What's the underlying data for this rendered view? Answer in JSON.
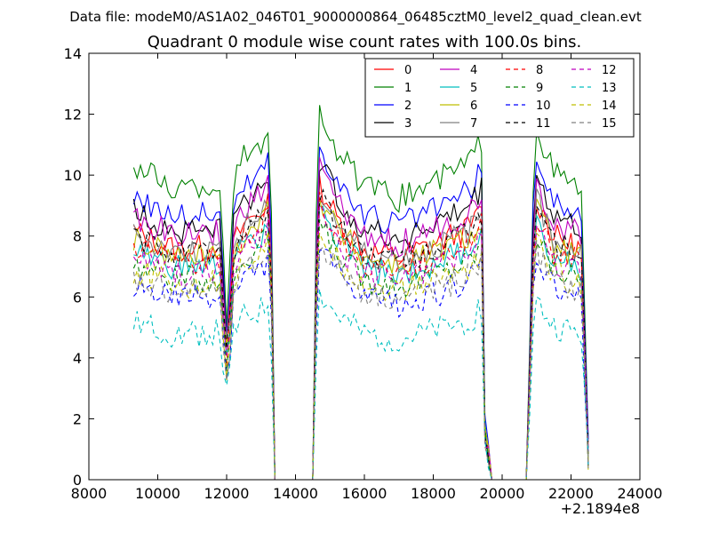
{
  "chart_data": {
    "type": "line",
    "suptitle": "Data file: modeM0/AS1A02_046T01_9000000864_06485cztM0_level2_quad_clean.evt",
    "title": "Quadrant 0 module wise count rates with 100.0s bins.",
    "xlabel": "",
    "ylabel": "",
    "x_offset_label": "+2.1894e8",
    "xlim": [
      8000,
      24000
    ],
    "ylim": [
      0,
      14
    ],
    "xticks": [
      8000,
      10000,
      12000,
      14000,
      16000,
      18000,
      20000,
      22000,
      24000
    ],
    "yticks": [
      0,
      2,
      4,
      6,
      8,
      10,
      12,
      14
    ],
    "x_tick_labels": [
      "8000",
      "10000",
      "12000",
      "14000",
      "16000",
      "18000",
      "20000",
      "22000",
      "24000"
    ],
    "y_tick_labels": [
      "0",
      "2",
      "4",
      "6",
      "8",
      "10",
      "12",
      "14"
    ],
    "legend_position": "top-right",
    "legend_columns": 4,
    "profile_breakpoints": [
      {
        "x": 9300,
        "f": 0.97
      },
      {
        "x": 10500,
        "f": 0.9
      },
      {
        "x": 11800,
        "f": 0.91
      },
      {
        "x": 11950,
        "f": 0.6
      },
      {
        "x": 12050,
        "f": 0.42
      },
      {
        "x": 12150,
        "f": 0.9
      },
      {
        "x": 12500,
        "f": 1.0
      },
      {
        "x": 13000,
        "f": 1.05
      },
      {
        "x": 13200,
        "f": 1.1
      },
      {
        "x": 13300,
        "f": 0.8
      },
      {
        "x": 13400,
        "f": 0.0
      },
      {
        "x": 14500,
        "f": 0.0
      },
      {
        "x": 14600,
        "f": 0.8
      },
      {
        "x": 14700,
        "f": 1.15
      },
      {
        "x": 15200,
        "f": 1.02
      },
      {
        "x": 16000,
        "f": 0.9
      },
      {
        "x": 17000,
        "f": 0.87
      },
      {
        "x": 18000,
        "f": 0.92
      },
      {
        "x": 19000,
        "f": 0.98
      },
      {
        "x": 19400,
        "f": 1.05
      },
      {
        "x": 19500,
        "f": 0.2
      },
      {
        "x": 19700,
        "f": 0.0
      },
      {
        "x": 20700,
        "f": 0.0
      },
      {
        "x": 20900,
        "f": 0.9
      },
      {
        "x": 21000,
        "f": 1.1
      },
      {
        "x": 21500,
        "f": 0.95
      },
      {
        "x": 22300,
        "f": 0.9
      },
      {
        "x": 22500,
        "f": 0.1
      }
    ],
    "series": [
      {
        "name": "0",
        "color": "#ff0000",
        "dash": "solid",
        "base": 8.4
      },
      {
        "name": "1",
        "color": "#008000",
        "dash": "solid",
        "base": 10.6
      },
      {
        "name": "2",
        "color": "#0000ff",
        "dash": "solid",
        "base": 9.6
      },
      {
        "name": "3",
        "color": "#000000",
        "dash": "solid",
        "base": 9.1
      },
      {
        "name": "4",
        "color": "#bf00bf",
        "dash": "solid",
        "base": 8.9
      },
      {
        "name": "5",
        "color": "#00bfbf",
        "dash": "solid",
        "base": 7.7
      },
      {
        "name": "6",
        "color": "#bfbf00",
        "dash": "solid",
        "base": 8.1
      },
      {
        "name": "7",
        "color": "#808080",
        "dash": "solid",
        "base": 8.3
      },
      {
        "name": "8",
        "color": "#ff0000",
        "dash": "dashed",
        "base": 7.9
      },
      {
        "name": "9",
        "color": "#008000",
        "dash": "dashed",
        "base": 7.3
      },
      {
        "name": "10",
        "color": "#0000ff",
        "dash": "dashed",
        "base": 6.6
      },
      {
        "name": "11",
        "color": "#000000",
        "dash": "dashed",
        "base": 8.2
      },
      {
        "name": "12",
        "color": "#bf00bf",
        "dash": "dashed",
        "base": 7.5
      },
      {
        "name": "13",
        "color": "#00bfbf",
        "dash": "dashed",
        "base": 5.3
      },
      {
        "name": "14",
        "color": "#bfbf00",
        "dash": "dashed",
        "base": 7.1
      },
      {
        "name": "15",
        "color": "#808080",
        "dash": "dashed",
        "base": 6.8
      }
    ]
  }
}
